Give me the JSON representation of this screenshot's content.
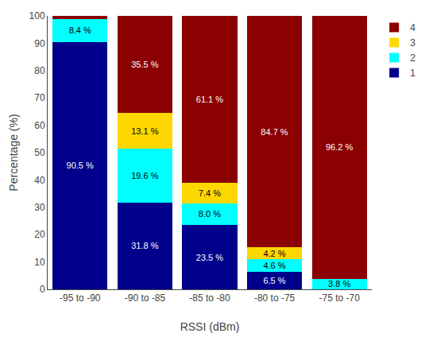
{
  "chart_data": {
    "type": "bar",
    "stacked": true,
    "data_labels": true,
    "categories": [
      "-95 to -90",
      "-90 to -85",
      "-85 to -80",
      "-80 to -75",
      "-75 to -70"
    ],
    "series": [
      {
        "name": "1",
        "color": "#00008B",
        "values": [
          90.5,
          31.8,
          23.5,
          6.5,
          0.0
        ],
        "value_labels": [
          "90.5 %",
          "31.8 %",
          "23.5 %",
          "6.5 %",
          null
        ]
      },
      {
        "name": "2",
        "color": "#00FFFF",
        "values": [
          8.4,
          19.6,
          8.0,
          4.6,
          3.8
        ],
        "value_labels": [
          "8.4 %",
          "19.6 %",
          "8.0 %",
          "4.6 %",
          "3.8 %"
        ]
      },
      {
        "name": "3",
        "color": "#FFD700",
        "values": [
          0.0,
          13.1,
          7.4,
          4.2,
          0.0
        ],
        "value_labels": [
          null,
          "13.1 %",
          "7.4 %",
          "4.2 %",
          null
        ]
      },
      {
        "name": "4",
        "color": "#8B0000",
        "values": [
          1.1,
          35.5,
          61.1,
          84.7,
          96.2
        ],
        "value_labels": [
          null,
          "35.5 %",
          "61.1 %",
          "84.7 %",
          "96.2 %"
        ]
      }
    ],
    "xlabel": "RSSI (dBm)",
    "ylabel": "Percentage (%)",
    "ylim": [
      0,
      100
    ],
    "yticks": [
      0,
      10,
      20,
      30,
      40,
      50,
      60,
      70,
      80,
      90,
      100
    ],
    "grid": false,
    "legend": "upper right"
  }
}
